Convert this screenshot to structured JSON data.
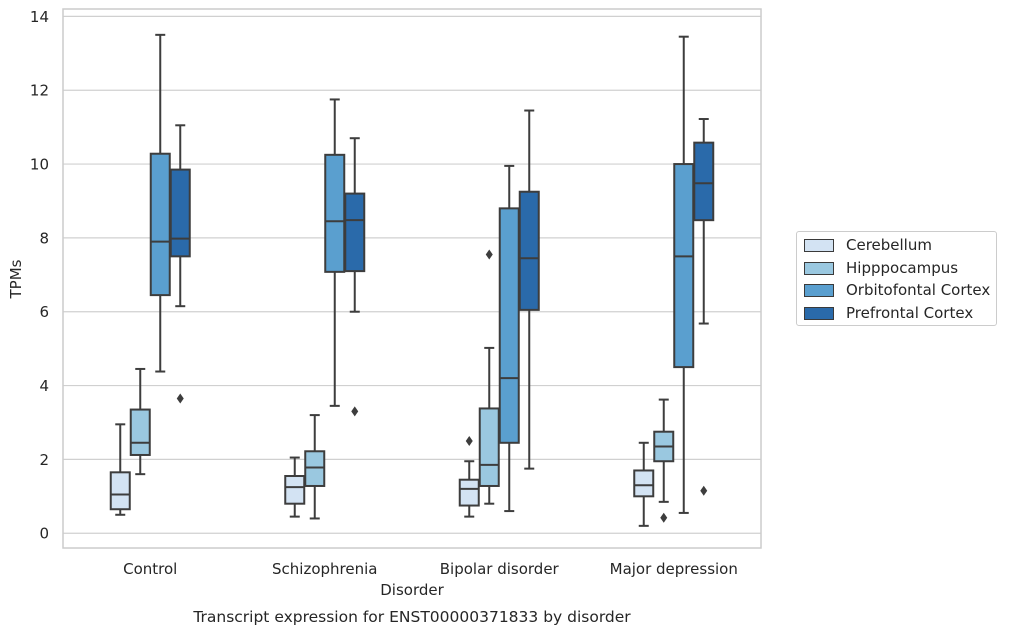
{
  "chart_data": {
    "type": "box",
    "title": "",
    "caption": "Transcript expression for ENST00000371833 by disorder",
    "xlabel": "Disorder",
    "ylabel": "TPMs",
    "ylim": [
      -0.4,
      14.2
    ],
    "yticks": [
      0,
      2,
      4,
      6,
      8,
      10,
      12,
      14
    ],
    "grid": "horizontal",
    "legend_position": "right",
    "categories": [
      "Control",
      "Schizophrenia",
      "Bipolar disorder",
      "Major depression"
    ],
    "series": [
      {
        "name": "Cerebellum",
        "color": "#d3e3f3",
        "boxes": [
          {
            "whisker_low": 0.5,
            "q1": 0.65,
            "median": 1.05,
            "q3": 1.65,
            "whisker_high": 2.95,
            "outliers": []
          },
          {
            "whisker_low": 0.45,
            "q1": 0.8,
            "median": 1.25,
            "q3": 1.55,
            "whisker_high": 2.05,
            "outliers": []
          },
          {
            "whisker_low": 0.45,
            "q1": 0.75,
            "median": 1.2,
            "q3": 1.45,
            "whisker_high": 1.95,
            "outliers": [
              2.5
            ]
          },
          {
            "whisker_low": 0.2,
            "q1": 1.0,
            "median": 1.3,
            "q3": 1.7,
            "whisker_high": 2.45,
            "outliers": []
          }
        ]
      },
      {
        "name": "Hipppocampus",
        "color": "#9ac8e0",
        "boxes": [
          {
            "whisker_low": 1.6,
            "q1": 2.12,
            "median": 2.45,
            "q3": 3.35,
            "whisker_high": 4.45,
            "outliers": []
          },
          {
            "whisker_low": 0.4,
            "q1": 1.28,
            "median": 1.78,
            "q3": 2.22,
            "whisker_high": 3.2,
            "outliers": []
          },
          {
            "whisker_low": 0.8,
            "q1": 1.28,
            "median": 1.85,
            "q3": 3.38,
            "whisker_high": 5.02,
            "outliers": [
              7.55
            ]
          },
          {
            "whisker_low": 0.85,
            "q1": 1.95,
            "median": 2.35,
            "q3": 2.75,
            "whisker_high": 3.62,
            "outliers": [
              0.42
            ]
          }
        ]
      },
      {
        "name": "Orbitofontal Cortex",
        "color": "#5a9fcf",
        "boxes": [
          {
            "whisker_low": 4.38,
            "q1": 6.45,
            "median": 7.9,
            "q3": 10.28,
            "whisker_high": 13.5,
            "outliers": []
          },
          {
            "whisker_low": 3.45,
            "q1": 7.08,
            "median": 8.45,
            "q3": 10.25,
            "whisker_high": 11.75,
            "outliers": []
          },
          {
            "whisker_low": 0.6,
            "q1": 2.45,
            "median": 4.2,
            "q3": 8.8,
            "whisker_high": 9.95,
            "outliers": []
          },
          {
            "whisker_low": 0.55,
            "q1": 4.5,
            "median": 7.5,
            "q3": 10.0,
            "whisker_high": 13.45,
            "outliers": []
          }
        ]
      },
      {
        "name": "Prefrontal Cortex",
        "color": "#2a6aaa",
        "boxes": [
          {
            "whisker_low": 6.15,
            "q1": 7.5,
            "median": 7.98,
            "q3": 9.85,
            "whisker_high": 11.05,
            "outliers": [
              3.65
            ]
          },
          {
            "whisker_low": 6.0,
            "q1": 7.1,
            "median": 8.48,
            "q3": 9.2,
            "whisker_high": 10.7,
            "outliers": [
              3.3
            ]
          },
          {
            "whisker_low": 1.75,
            "q1": 6.05,
            "median": 7.45,
            "q3": 9.25,
            "whisker_high": 11.45,
            "outliers": []
          },
          {
            "whisker_low": 5.68,
            "q1": 8.48,
            "median": 9.48,
            "q3": 10.58,
            "whisker_high": 11.22,
            "outliers": [
              1.15
            ]
          }
        ]
      }
    ]
  }
}
